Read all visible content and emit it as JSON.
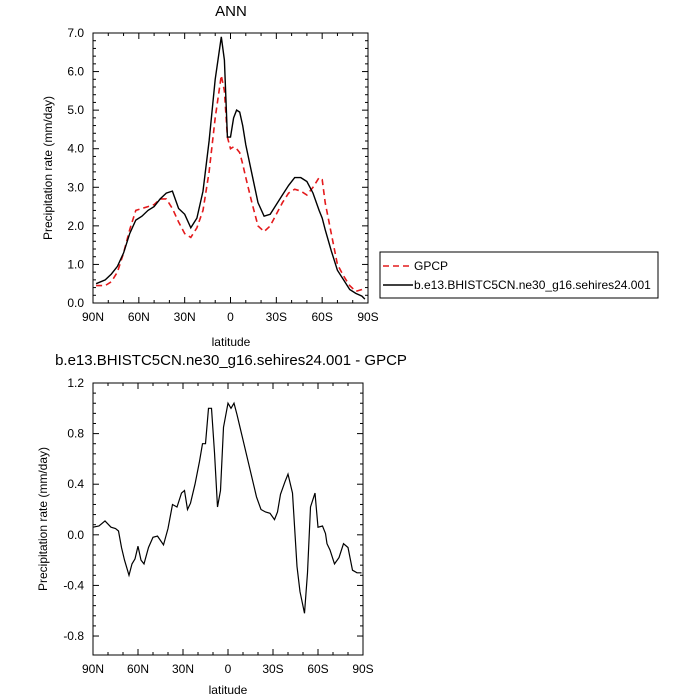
{
  "chart_data": [
    {
      "type": "line",
      "title": "ANN",
      "xlabel": "latitude",
      "ylabel": "Precipitation rate (mm/day)",
      "xlim": [
        -90,
        90
      ],
      "x_direction": "90N on left, 90S on right",
      "ylim": [
        0,
        7
      ],
      "xticks": [
        {
          "value": -90,
          "label": "90N"
        },
        {
          "value": -60,
          "label": "60N"
        },
        {
          "value": -30,
          "label": "30N"
        },
        {
          "value": 0,
          "label": "0"
        },
        {
          "value": 30,
          "label": "30S"
        },
        {
          "value": 60,
          "label": "60S"
        },
        {
          "value": 90,
          "label": "90S"
        }
      ],
      "yticks": [
        {
          "value": 0,
          "label": "0.0"
        },
        {
          "value": 1,
          "label": "1.0"
        },
        {
          "value": 2,
          "label": "2.0"
        },
        {
          "value": 3,
          "label": "3.0"
        },
        {
          "value": 4,
          "label": "4.0"
        },
        {
          "value": 5,
          "label": "5.0"
        },
        {
          "value": 6,
          "label": "6.0"
        },
        {
          "value": 7,
          "label": "7.0"
        }
      ],
      "legend_placement": "right, outside plot",
      "grid": false,
      "series": [
        {
          "name": "GPCP",
          "color": "#e41a1c",
          "style": "dashed",
          "x": [
            -88,
            -82,
            -78,
            -74,
            -70,
            -66,
            -62,
            -58,
            -54,
            -50,
            -46,
            -42,
            -38,
            -34,
            -30,
            -26,
            -22,
            -18,
            -14,
            -10,
            -6,
            -4,
            -2,
            0,
            2,
            4,
            6,
            8,
            10,
            14,
            18,
            22,
            26,
            30,
            34,
            38,
            42,
            46,
            50,
            54,
            58,
            60,
            62,
            66,
            70,
            74,
            78,
            82,
            86,
            88
          ],
          "y": [
            0.45,
            0.45,
            0.55,
            0.8,
            1.3,
            1.9,
            2.4,
            2.45,
            2.5,
            2.55,
            2.7,
            2.7,
            2.45,
            2.1,
            1.8,
            1.7,
            1.95,
            2.4,
            3.4,
            4.8,
            5.9,
            5.5,
            4.3,
            4.0,
            4.05,
            4.0,
            3.9,
            3.6,
            3.25,
            2.6,
            2.0,
            1.85,
            2.0,
            2.3,
            2.6,
            2.85,
            2.95,
            2.9,
            2.8,
            3.0,
            3.25,
            3.2,
            2.6,
            1.8,
            1.0,
            0.7,
            0.45,
            0.3,
            0.35,
            0.4
          ]
        },
        {
          "name": "b.e13.BHISTC5CN.ne30_g16.sehires24.001",
          "color": "#000000",
          "style": "solid",
          "x": [
            -88,
            -82,
            -78,
            -74,
            -70,
            -66,
            -62,
            -58,
            -54,
            -50,
            -46,
            -42,
            -38,
            -34,
            -30,
            -26,
            -22,
            -18,
            -14,
            -10,
            -6,
            -4,
            -2,
            0,
            2,
            4,
            6,
            8,
            10,
            14,
            18,
            22,
            26,
            30,
            34,
            38,
            42,
            46,
            50,
            54,
            58,
            60,
            62,
            66,
            70,
            74,
            78,
            82,
            86,
            88
          ],
          "y": [
            0.5,
            0.6,
            0.75,
            0.95,
            1.3,
            1.8,
            2.15,
            2.25,
            2.4,
            2.5,
            2.7,
            2.85,
            2.9,
            2.45,
            2.3,
            1.95,
            2.2,
            2.9,
            4.2,
            5.8,
            6.9,
            6.3,
            4.3,
            4.3,
            4.8,
            5.0,
            4.95,
            4.6,
            4.1,
            3.35,
            2.6,
            2.25,
            2.3,
            2.55,
            2.8,
            3.05,
            3.25,
            3.25,
            3.15,
            2.85,
            2.4,
            2.2,
            1.9,
            1.35,
            0.85,
            0.6,
            0.35,
            0.25,
            0.18,
            0.1
          ]
        }
      ]
    },
    {
      "type": "line",
      "title": "b.e13.BHISTC5CN.ne30_g16.sehires24.001 - GPCP",
      "xlabel": "latitude",
      "ylabel": "Precipitation rate (mm/day)",
      "xlim": [
        -90,
        90
      ],
      "ylim": [
        -0.95,
        1.2
      ],
      "xticks": [
        {
          "value": -90,
          "label": "90N"
        },
        {
          "value": -60,
          "label": "60N"
        },
        {
          "value": -30,
          "label": "30N"
        },
        {
          "value": 0,
          "label": "0"
        },
        {
          "value": 30,
          "label": "30S"
        },
        {
          "value": 60,
          "label": "60S"
        },
        {
          "value": 90,
          "label": "90S"
        }
      ],
      "yticks": [
        {
          "value": -0.8,
          "label": "-0.8"
        },
        {
          "value": -0.4,
          "label": "-0.4"
        },
        {
          "value": 0.0,
          "label": "0.0"
        },
        {
          "value": 0.4,
          "label": "0.4"
        },
        {
          "value": 0.8,
          "label": "0.8"
        },
        {
          "value": 1.2,
          "label": "1.2"
        }
      ],
      "grid": false,
      "series": [
        {
          "color": "#000000",
          "style": "solid",
          "x": [
            -90,
            -86,
            -82,
            -78,
            -75,
            -73,
            -71,
            -69,
            -66,
            -64,
            -62,
            -60,
            -58,
            -56,
            -53,
            -50,
            -47,
            -43,
            -40,
            -37,
            -34,
            -31,
            -29,
            -27,
            -25,
            -22,
            -19,
            -17,
            -15,
            -13,
            -11,
            -9,
            -7,
            -5,
            -3,
            0,
            2,
            4,
            6,
            8,
            10,
            13,
            16,
            19,
            22,
            25,
            28,
            31,
            33,
            35,
            38,
            40,
            43,
            46,
            48,
            51,
            53,
            55,
            58,
            60,
            63,
            65,
            66,
            68,
            71,
            74,
            77,
            80,
            83,
            86,
            89
          ],
          "y": [
            0.06,
            0.07,
            0.11,
            0.06,
            0.05,
            0.03,
            -0.1,
            -0.2,
            -0.32,
            -0.23,
            -0.19,
            -0.09,
            -0.2,
            -0.23,
            -0.1,
            -0.02,
            -0.01,
            -0.08,
            0.05,
            0.24,
            0.22,
            0.33,
            0.35,
            0.2,
            0.25,
            0.4,
            0.58,
            0.72,
            0.72,
            1.0,
            1.0,
            0.65,
            0.22,
            0.35,
            0.85,
            1.04,
            1.0,
            1.04,
            0.95,
            0.85,
            0.75,
            0.6,
            0.45,
            0.3,
            0.2,
            0.18,
            0.17,
            0.12,
            0.18,
            0.32,
            0.42,
            0.48,
            0.33,
            -0.25,
            -0.45,
            -0.62,
            -0.3,
            0.22,
            0.33,
            0.06,
            0.07,
            0.01,
            -0.07,
            -0.12,
            -0.23,
            -0.18,
            -0.07,
            -0.1,
            -0.28,
            -0.3,
            -0.3
          ]
        }
      ]
    }
  ]
}
